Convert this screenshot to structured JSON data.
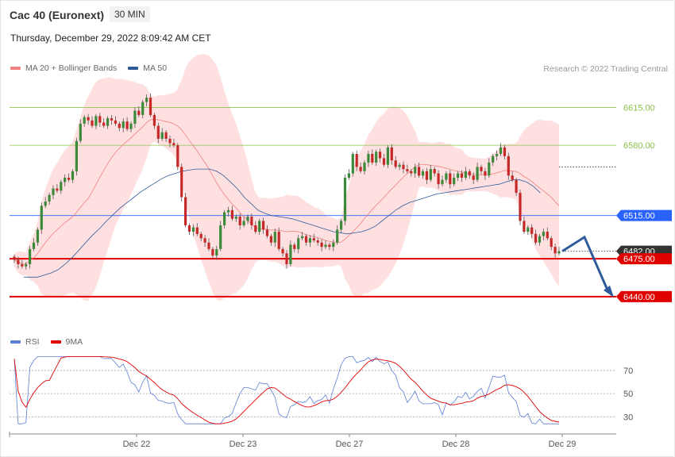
{
  "header": {
    "instrument": "Cac 40 (Euronext)",
    "timeframe": "30 MIN",
    "datetime": "Thursday, December 29, 2022 8:09:42 AM CET",
    "credit": "Research © 2022 Trading Central"
  },
  "legend_main": [
    {
      "label": "MA 20 + Bollinger Bands",
      "color": "#f08080"
    },
    {
      "label": "MA 50",
      "color": "#2f5b9b"
    }
  ],
  "legend_rsi": [
    {
      "label": "RSI",
      "color": "#5b7fd6"
    },
    {
      "label": "9MA",
      "color": "#e00000"
    }
  ],
  "chart_data": {
    "type": "candlestick",
    "x_axis_labels": [
      "Dec 22",
      "Dec 23",
      "Dec 27",
      "Dec 28",
      "Dec 29"
    ],
    "price_axis": {
      "ylim": [
        6412,
        6641
      ]
    },
    "levels": [
      {
        "value": 6615.0,
        "label": "6615.00",
        "color": "#8bc34a",
        "style": "thin"
      },
      {
        "value": 6580.0,
        "label": "6580.00",
        "color": "#8bc34a",
        "style": "thin"
      },
      {
        "value": 6515.0,
        "label": "6515.00",
        "color": "#2962ff",
        "style": "blue-tag"
      },
      {
        "value": 6482.0,
        "label": "6482.00",
        "color": "#333333",
        "style": "current-price"
      },
      {
        "value": 6475.0,
        "label": "6475.00",
        "color": "#e00000",
        "style": "red-tag"
      },
      {
        "value": 6440.0,
        "label": "6440.00",
        "color": "#e00000",
        "style": "red-tag"
      }
    ],
    "projection": {
      "from": 6482,
      "peak": 6495,
      "to": 6440,
      "color": "#2f5b9b"
    },
    "candles_close": [
      6474,
      6470,
      6468,
      6470,
      6484,
      6490,
      6502,
      6524,
      6528,
      6534,
      6540,
      6538,
      6546,
      6550,
      6548,
      6556,
      6584,
      6600,
      6606,
      6603,
      6598,
      6607,
      6601,
      6598,
      6605,
      6603,
      6600,
      6596,
      6602,
      6595,
      6600,
      6612,
      6608,
      6620,
      6624,
      6608,
      6598,
      6586,
      6592,
      6586,
      6582,
      6580,
      6560,
      6532,
      6506,
      6500,
      6504,
      6498,
      6494,
      6490,
      6484,
      6478,
      6484,
      6506,
      6518,
      6520,
      6512,
      6514,
      6506,
      6510,
      6514,
      6506,
      6500,
      6510,
      6502,
      6496,
      6490,
      6500,
      6484,
      6480,
      6470,
      6488,
      6484,
      6494,
      6496,
      6490,
      6494,
      6492,
      6490,
      6486,
      6488,
      6486,
      6490,
      6502,
      6510,
      6550,
      6554,
      6572,
      6560,
      6556,
      6564,
      6572,
      6564,
      6574,
      6568,
      6562,
      6578,
      6566,
      6560,
      6562,
      6558,
      6556,
      6554,
      6560,
      6552,
      6556,
      6548,
      6558,
      6554,
      6544,
      6548,
      6554,
      6544,
      6550,
      6554,
      6550,
      6556,
      6552,
      6548,
      6560,
      6556,
      6552,
      6564,
      6570,
      6572,
      6578,
      6570,
      6552,
      6548,
      6536,
      6510,
      6500,
      6504,
      6498,
      6490,
      6496,
      6500,
      6494,
      6486,
      6480,
      6482
    ],
    "ma50": [
      6458,
      6458,
      6458,
      6460,
      6462,
      6465,
      6470,
      6476,
      6483,
      6490,
      6497,
      6503,
      6510,
      6516,
      6522,
      6527,
      6532,
      6537,
      6541,
      6545,
      6549,
      6552,
      6554,
      6556,
      6557,
      6558,
      6558,
      6558,
      6556,
      6552,
      6546,
      6540,
      6532,
      6526,
      6520,
      6517,
      6515,
      6514,
      6513,
      6512,
      6510,
      6508,
      6506,
      6504,
      6502,
      6500,
      6499,
      6498,
      6499,
      6500,
      6502,
      6505,
      6510,
      6515,
      6520,
      6524,
      6527,
      6529,
      6531,
      6533,
      6535,
      6536,
      6537,
      6538,
      6539,
      6540,
      6541,
      6542,
      6543,
      6544,
      6546,
      6548,
      6548,
      6546,
      6542,
      6536
    ],
    "rsi": {
      "levels": [
        70,
        50,
        30
      ],
      "ylim": [
        20,
        85
      ]
    }
  }
}
